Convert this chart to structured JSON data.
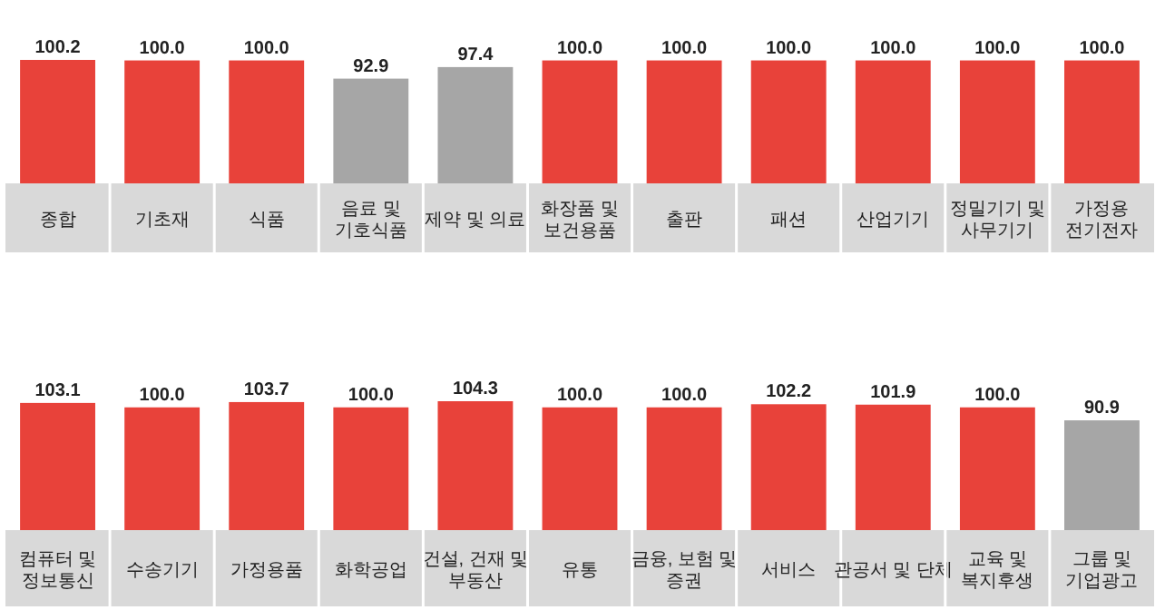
{
  "chart_data": [
    {
      "type": "bar",
      "categories": [
        "종합",
        "기초재",
        "식품",
        "음료 및\n기호식품",
        "제약 및 의료",
        "화장품 및\n보건용품",
        "출판",
        "패션",
        "산업기기",
        "정밀기기 및\n사무기기",
        "가정용\n전기전자"
      ],
      "values": [
        100.2,
        100.0,
        100.0,
        92.9,
        97.4,
        100.0,
        100.0,
        100.0,
        100.0,
        100.0,
        100.0
      ],
      "colors": [
        "#e8423a",
        "#e8423a",
        "#e8423a",
        "#a6a6a6",
        "#a6a6a6",
        "#e8423a",
        "#e8423a",
        "#e8423a",
        "#e8423a",
        "#e8423a",
        "#e8423a"
      ],
      "value_labels": [
        "100.2",
        "100.0",
        "100.0",
        "92.9",
        "97.4",
        "100.0",
        "100.0",
        "100.0",
        "100.0",
        "100.0",
        "100.0"
      ],
      "ylim": [
        52,
        100.2
      ]
    },
    {
      "type": "bar",
      "categories": [
        "컴퓨터 및\n정보통신",
        "수송기기",
        "가정용품",
        "화학공업",
        "건설, 건재 및\n부동산",
        "유통",
        "금융, 보험 및\n증권",
        "서비스",
        "관공서 및 단체",
        "교육 및\n복지후생",
        "그룹 및\n기업광고"
      ],
      "values": [
        103.1,
        100.0,
        103.7,
        100.0,
        104.3,
        100.0,
        100.0,
        102.2,
        101.9,
        100.0,
        90.9
      ],
      "colors": [
        "#e8423a",
        "#e8423a",
        "#e8423a",
        "#e8423a",
        "#e8423a",
        "#e8423a",
        "#e8423a",
        "#e8423a",
        "#e8423a",
        "#e8423a",
        "#a6a6a6"
      ],
      "value_labels": [
        "103.1",
        "100.0",
        "103.7",
        "100.0",
        "104.3",
        "100.0",
        "100.0",
        "102.2",
        "101.9",
        "100.0",
        "90.9"
      ],
      "ylim": [
        14,
        104.3
      ]
    }
  ]
}
